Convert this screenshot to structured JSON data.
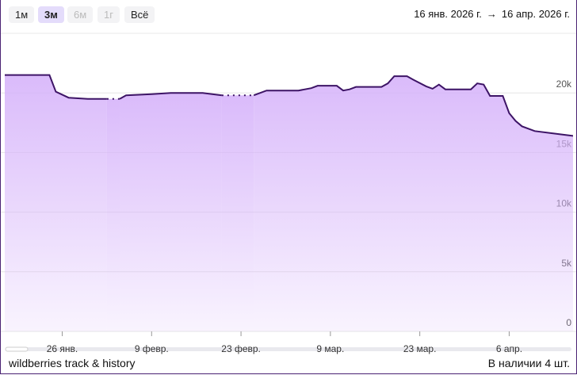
{
  "toolbar": {
    "buttons": [
      "1м",
      "3м",
      "6м",
      "1г",
      "Всё"
    ],
    "date_from": "16 янв. 2026 г.",
    "arrow": "→",
    "date_to": "16 апр. 2026 г."
  },
  "chart_data": {
    "type": "line",
    "color": "#3d1466",
    "fill": "#d6b3fa",
    "x": [
      "2026-01-17",
      "2026-01-24",
      "2026-01-25",
      "2026-01-27",
      "2026-01-30",
      "2026-02-02",
      "2026-02-03",
      "2026-02-04",
      "2026-02-05",
      "2026-02-07",
      "2026-02-09",
      "2026-02-12",
      "2026-02-17",
      "2026-02-20",
      "2026-02-21",
      "2026-02-25",
      "2026-02-27",
      "2026-03-04",
      "2026-03-06",
      "2026-03-07",
      "2026-03-10",
      "2026-03-11",
      "2026-03-12",
      "2026-03-13",
      "2026-03-17",
      "2026-03-18",
      "2026-03-19",
      "2026-03-21",
      "2026-03-22",
      "2026-03-24",
      "2026-03-25",
      "2026-03-26",
      "2026-03-27",
      "2026-03-31",
      "2026-04-01",
      "2026-04-02",
      "2026-04-03",
      "2026-04-05",
      "2026-04-06",
      "2026-04-07",
      "2026-04-08",
      "2026-04-10",
      "2026-04-13",
      "2026-04-16"
    ],
    "values": [
      21500,
      21500,
      20100,
      19600,
      19500,
      19500,
      null,
      19500,
      19800,
      19850,
      19900,
      20000,
      20000,
      19800,
      null,
      19800,
      20200,
      20200,
      20400,
      20600,
      20600,
      20200,
      20300,
      20500,
      20500,
      20800,
      21400,
      21400,
      21100,
      20550,
      20350,
      20700,
      20300,
      20300,
      20800,
      20700,
      19750,
      19750,
      18300,
      17650,
      17200,
      16800,
      16600,
      16400
    ],
    "xlim": [
      "2026-01-17",
      "2026-04-16"
    ],
    "xticks": [
      {
        "value": "2026-01-26",
        "label": "26 янв."
      },
      {
        "value": "2026-02-09",
        "label": "9 февр."
      },
      {
        "value": "2026-02-23",
        "label": "23 февр."
      },
      {
        "value": "2026-03-09",
        "label": "9 мар."
      },
      {
        "value": "2026-03-23",
        "label": "23 мар."
      },
      {
        "value": "2026-04-06",
        "label": "6 апр."
      }
    ],
    "ylim": [
      0,
      25000
    ],
    "yticks": [
      0,
      {
        "value": 5000,
        "label": "5k"
      },
      {
        "value": 10000,
        "label": "10k"
      },
      {
        "value": 15000,
        "label": "15k"
      },
      {
        "value": 20000,
        "label": "20k"
      }
    ],
    "grid": true
  },
  "footer": {
    "left": "wildberries track & history",
    "right": "В наличии 4 шт."
  }
}
